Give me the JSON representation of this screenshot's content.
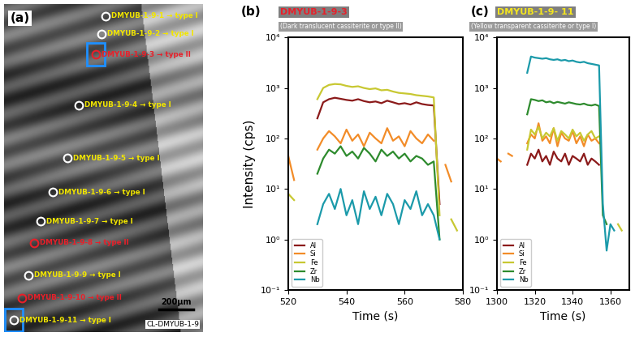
{
  "panel_a": {
    "label": "(a)",
    "points": [
      "DMYUB-1-9-1 → type I",
      "DMYUB-1-9-2 → type I",
      "DMYUB-1-9-3 → type II",
      "DMYUB-1-9-4 → type I",
      "DMYUB-1-9-5 → type I",
      "DMYUB-1-9-6 → type I",
      "DMYUB-1-9-7 → type I",
      "DMYUB-1-9-8 → type II",
      "DMYUB-1-9-9 → type I",
      "DMYUB-1-9-10 → type II",
      "DMYUB-1-9-11 → type I"
    ],
    "scale_bar": "200μm",
    "image_label": "CL-DMYUB-1-9"
  },
  "chart_data": [
    {
      "type": "line",
      "panel": "(b)",
      "title": "DMYUB-1-9-3",
      "subtitle": "(Dark translucent cassiterite or type II)",
      "x_label": "Time (s)",
      "y_label": "Intensity (cps)",
      "log": "y",
      "legend": "lower left",
      "xlim": [
        520,
        580
      ],
      "xticks": [
        520,
        540,
        560,
        580
      ],
      "ylim": [
        0.1,
        10000
      ],
      "yticks": [
        {
          "value": 0.1,
          "label": "10⁻¹"
        },
        {
          "value": 1,
          "label": "10⁰"
        },
        {
          "value": 10,
          "label": "10¹"
        },
        {
          "value": 100,
          "label": "10²"
        },
        {
          "value": 1000,
          "label": "10³"
        },
        {
          "value": 10000,
          "label": "10⁴"
        }
      ],
      "x": [
        520,
        522,
        524,
        526,
        528,
        530,
        532,
        534,
        536,
        538,
        540,
        542,
        544,
        546,
        548,
        550,
        552,
        554,
        556,
        558,
        560,
        562,
        564,
        566,
        568,
        570,
        572,
        574,
        576,
        578
      ],
      "series": [
        {
          "name": "Al",
          "color": "#8b1a1a",
          "values": [
            null,
            null,
            null,
            null,
            null,
            250,
            520,
            600,
            640,
            610,
            580,
            560,
            600,
            550,
            520,
            540,
            500,
            560,
            520,
            480,
            500,
            470,
            520,
            480,
            460,
            450,
            5,
            null,
            null,
            null
          ]
        },
        {
          "name": "Si",
          "color": "#f28c28",
          "values": [
            45,
            15,
            null,
            null,
            null,
            60,
            100,
            140,
            110,
            80,
            150,
            90,
            120,
            70,
            130,
            100,
            80,
            160,
            90,
            110,
            70,
            140,
            100,
            80,
            120,
            90,
            null,
            30,
            14,
            null
          ]
        },
        {
          "name": "Fe",
          "color": "#c8c832",
          "values": [
            8,
            6,
            null,
            null,
            null,
            600,
            1000,
            1150,
            1200,
            1180,
            1100,
            1050,
            1080,
            1000,
            950,
            980,
            900,
            920,
            850,
            800,
            780,
            760,
            720,
            700,
            680,
            650,
            3,
            null,
            2.5,
            1.5
          ]
        },
        {
          "name": "Zr",
          "color": "#2e8b2e",
          "values": [
            null,
            null,
            null,
            null,
            null,
            20,
            40,
            60,
            50,
            70,
            45,
            55,
            40,
            65,
            50,
            35,
            60,
            45,
            55,
            40,
            50,
            35,
            45,
            40,
            30,
            35,
            1,
            null,
            null,
            null
          ]
        },
        {
          "name": "Nb",
          "color": "#1b9aaa",
          "values": [
            null,
            null,
            null,
            null,
            null,
            2,
            5,
            8,
            4,
            10,
            3,
            6,
            2,
            9,
            4,
            7,
            3,
            8,
            5,
            2,
            6,
            4,
            9,
            3,
            5,
            3,
            1,
            null,
            null,
            null
          ]
        }
      ]
    },
    {
      "type": "line",
      "panel": "(c)",
      "title": "DMYUB-1-9- 11",
      "subtitle": "(Yellow transparent cassiterite or type I)",
      "x_label": "Time (s)",
      "log": "y",
      "legend": "lower left",
      "xlim": [
        1300,
        1370
      ],
      "xticks": [
        1300,
        1320,
        1340,
        1360
      ],
      "ylim": [
        0.1,
        10000
      ],
      "yticks": [
        {
          "value": 0.1,
          "label": "10⁻¹"
        },
        {
          "value": 1,
          "label": "10⁰"
        },
        {
          "value": 10,
          "label": "10¹"
        },
        {
          "value": 100,
          "label": "10²"
        },
        {
          "value": 1000,
          "label": "10³"
        },
        {
          "value": 10000,
          "label": "10⁴"
        }
      ],
      "x": [
        1300,
        1302,
        1304,
        1306,
        1308,
        1310,
        1312,
        1314,
        1316,
        1318,
        1320,
        1322,
        1324,
        1326,
        1328,
        1330,
        1332,
        1334,
        1336,
        1338,
        1340,
        1342,
        1344,
        1346,
        1348,
        1350,
        1352,
        1354,
        1356,
        1358,
        1360,
        1362,
        1364,
        1366,
        1368
      ],
      "series": [
        {
          "name": "Al",
          "color": "#8b1a1a",
          "values": [
            null,
            null,
            null,
            null,
            null,
            null,
            null,
            null,
            30,
            50,
            40,
            60,
            35,
            45,
            30,
            55,
            40,
            35,
            50,
            30,
            45,
            40,
            35,
            50,
            30,
            40,
            35,
            30,
            null,
            null,
            null,
            null,
            null,
            null,
            null
          ]
        },
        {
          "name": "Si",
          "color": "#f28c28",
          "values": [
            40,
            35,
            null,
            50,
            45,
            null,
            null,
            null,
            80,
            120,
            100,
            200,
            90,
            110,
            80,
            160,
            70,
            130,
            100,
            90,
            140,
            80,
            110,
            70,
            120,
            90,
            100,
            80,
            null,
            null,
            null,
            null,
            null,
            null,
            null
          ]
        },
        {
          "name": "Fe",
          "color": "#c8c832",
          "values": [
            null,
            null,
            null,
            null,
            null,
            null,
            null,
            null,
            60,
            150,
            120,
            170,
            100,
            130,
            110,
            160,
            90,
            140,
            120,
            100,
            150,
            110,
            130,
            90,
            120,
            140,
            100,
            110,
            null,
            null,
            null,
            null,
            2,
            1.5,
            null
          ]
        },
        {
          "name": "Zr",
          "color": "#2e8b2e",
          "values": [
            null,
            null,
            null,
            null,
            null,
            null,
            null,
            null,
            300,
            600,
            580,
            550,
            570,
            520,
            540,
            500,
            530,
            510,
            490,
            520,
            500,
            480,
            470,
            490,
            460,
            450,
            470,
            440,
            3,
            2,
            null,
            null,
            null,
            null,
            null
          ]
        },
        {
          "name": "Nb",
          "color": "#1b9aaa",
          "values": [
            null,
            null,
            null,
            null,
            null,
            null,
            null,
            null,
            2000,
            4200,
            4000,
            3900,
            3800,
            3900,
            3700,
            3600,
            3700,
            3500,
            3600,
            3400,
            3500,
            3300,
            3200,
            3300,
            3100,
            3000,
            2900,
            2800,
            5,
            0.6,
            2,
            1.5,
            null,
            null,
            null
          ]
        }
      ]
    }
  ]
}
